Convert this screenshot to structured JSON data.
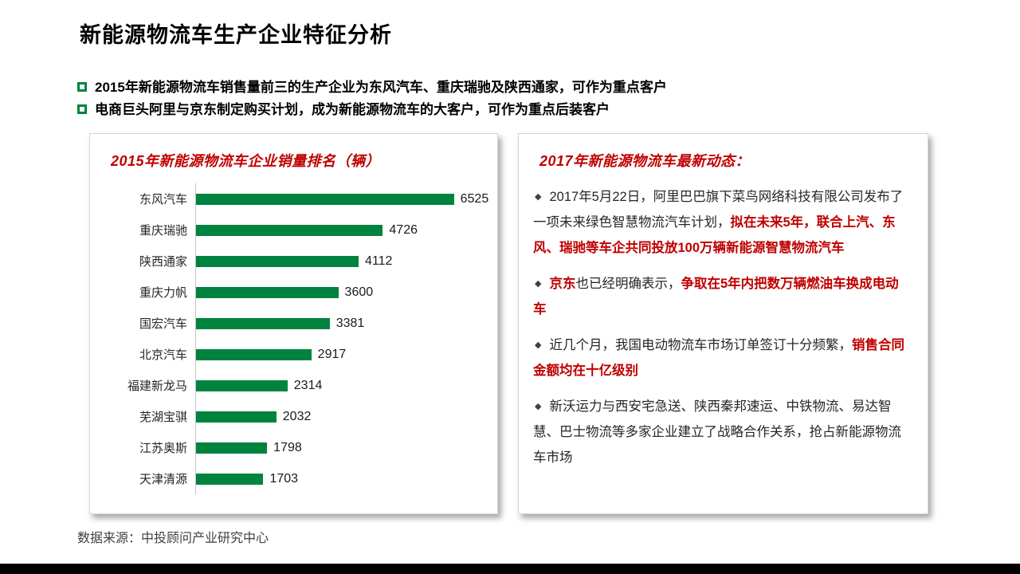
{
  "slide": {
    "title": "新能源物流车生产企业特征分析",
    "footer": "数据来源：中投顾问产业研究中心"
  },
  "key_points": {
    "items": [
      {
        "text": "2015年新能源物流车销售量前三的生产企业为东风汽车、重庆瑞驰及陕西通家，可作为重点客户"
      },
      {
        "text": "电商巨头阿里与京东制定购买计划，成为新能源物流车的大客户，可作为重点后装客户"
      }
    ]
  },
  "chart_data": {
    "type": "bar",
    "orientation": "horizontal",
    "title": "2015年新能源物流车企业销量排名（辆）",
    "categories": [
      "东风汽车",
      "重庆瑞驰",
      "陕西通家",
      "重庆力帆",
      "国宏汽车",
      "北京汽车",
      "福建新龙马",
      "芜湖宝骐",
      "江苏奥斯",
      "天津清源"
    ],
    "values": [
      6525,
      4726,
      4112,
      3600,
      3381,
      2917,
      2314,
      2032,
      1798,
      1703
    ],
    "xlim": [
      0,
      7500
    ],
    "data_labels": true,
    "grid": false,
    "legend": "none",
    "bar_color": "#00833E",
    "title_color": "#C00000"
  },
  "news_panel": {
    "title": "2017年新能源物流车最新动态：",
    "marker": "◆",
    "bullets": [
      {
        "segments": [
          {
            "text": "2017年5月22日，阿里巴巴旗下菜鸟网络科技有限公司发布了一项未来绿色智慧物流汽车计划，",
            "red": false
          },
          {
            "text": "拟在未来5年，联合上汽、东风、瑞驰等车企共同投放100万辆新能源智慧物流汽车",
            "red": true
          }
        ]
      },
      {
        "segments": [
          {
            "text": "京东",
            "red": true
          },
          {
            "text": "也已经明确表示，",
            "red": false
          },
          {
            "text": "争取在5年内把数万辆燃油车换成电动车",
            "red": true
          }
        ]
      },
      {
        "segments": [
          {
            "text": "近几个月，我国电动物流车市场订单签订十分频繁，",
            "red": false
          },
          {
            "text": "销售合同金额均在十亿级别",
            "red": true
          }
        ]
      },
      {
        "segments": [
          {
            "text": "新沃运力与西安宅急送、陕西秦邦速运、中铁物流、易达智慧、巴士物流等多家企业建立了战略合作关系，抢占新能源物流车市场",
            "red": false
          }
        ]
      }
    ]
  },
  "colors": {
    "accent_red": "#C00000",
    "bar_green": "#00833E",
    "bullet_square_green": "#00833E",
    "bottom_bar_black": "#000000"
  }
}
